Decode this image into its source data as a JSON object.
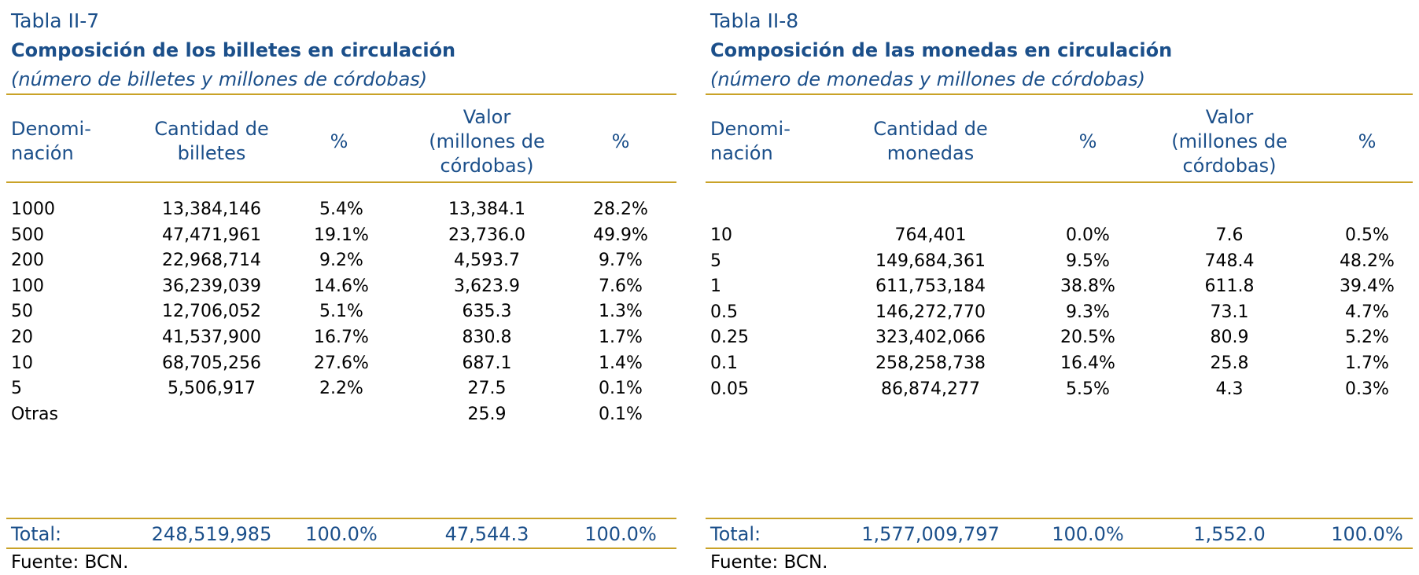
{
  "left": {
    "label": "Tabla II-7",
    "title": "Composición de los billetes en circulación",
    "subtitle": "(número de billetes y millones de córdobas)",
    "headers": [
      "Denomi-\nnación",
      "Cantidad de\nbilletes",
      "%",
      "Valor\n(millones de\ncórdobas)",
      "%"
    ],
    "rows": [
      [
        "1000",
        "13,384,146",
        "5.4%",
        "13,384.1",
        "28.2%"
      ],
      [
        "500",
        "47,471,961",
        "19.1%",
        "23,736.0",
        "49.9%"
      ],
      [
        "200",
        "22,968,714",
        "9.2%",
        "4,593.7",
        "9.7%"
      ],
      [
        "100",
        "36,239,039",
        "14.6%",
        "3,623.9",
        "7.6%"
      ],
      [
        "50",
        "12,706,052",
        "5.1%",
        "635.3",
        "1.3%"
      ],
      [
        "20",
        "41,537,900",
        "16.7%",
        "830.8",
        "1.7%"
      ],
      [
        "10",
        "68,705,256",
        "27.6%",
        "687.1",
        "1.4%"
      ],
      [
        "5",
        "5,506,917",
        "2.2%",
        "27.5",
        "0.1%"
      ],
      [
        "Otras",
        "",
        "",
        "25.9",
        "0.1%"
      ]
    ],
    "total": [
      "Total:",
      "248,519,985",
      "100.0%",
      "47,544.3",
      "100.0%"
    ],
    "source": "Fuente: BCN."
  },
  "right": {
    "label": "Tabla II-8",
    "title": "Composición de las monedas en circulación",
    "subtitle": "(número de monedas y millones de córdobas)",
    "headers": [
      "Denomi-\nnación",
      "Cantidad de\nmonedas",
      "%",
      "Valor\n(millones de\ncórdobas)",
      "%"
    ],
    "rows": [
      [
        "10",
        "764,401",
        "0.0%",
        "7.6",
        "0.5%"
      ],
      [
        "5",
        "149,684,361",
        "9.5%",
        "748.4",
        "48.2%"
      ],
      [
        "1",
        "611,753,184",
        "38.8%",
        "611.8",
        "39.4%"
      ],
      [
        "0.5",
        "146,272,770",
        "9.3%",
        "73.1",
        "4.7%"
      ],
      [
        "0.25",
        "323,402,066",
        "20.5%",
        "80.9",
        "5.2%"
      ],
      [
        "0.1",
        "258,258,738",
        "16.4%",
        "25.8",
        "1.7%"
      ],
      [
        "0.05",
        "86,874,277",
        "5.5%",
        "4.3",
        "0.3%"
      ]
    ],
    "total": [
      "Total:",
      "1,577,009,797",
      "100.0%",
      "1,552.0",
      "100.0%"
    ],
    "source": "Fuente: BCN."
  },
  "colors": {
    "heading_blue": "#1b4f8a",
    "rule_gold": "#c9a227"
  }
}
